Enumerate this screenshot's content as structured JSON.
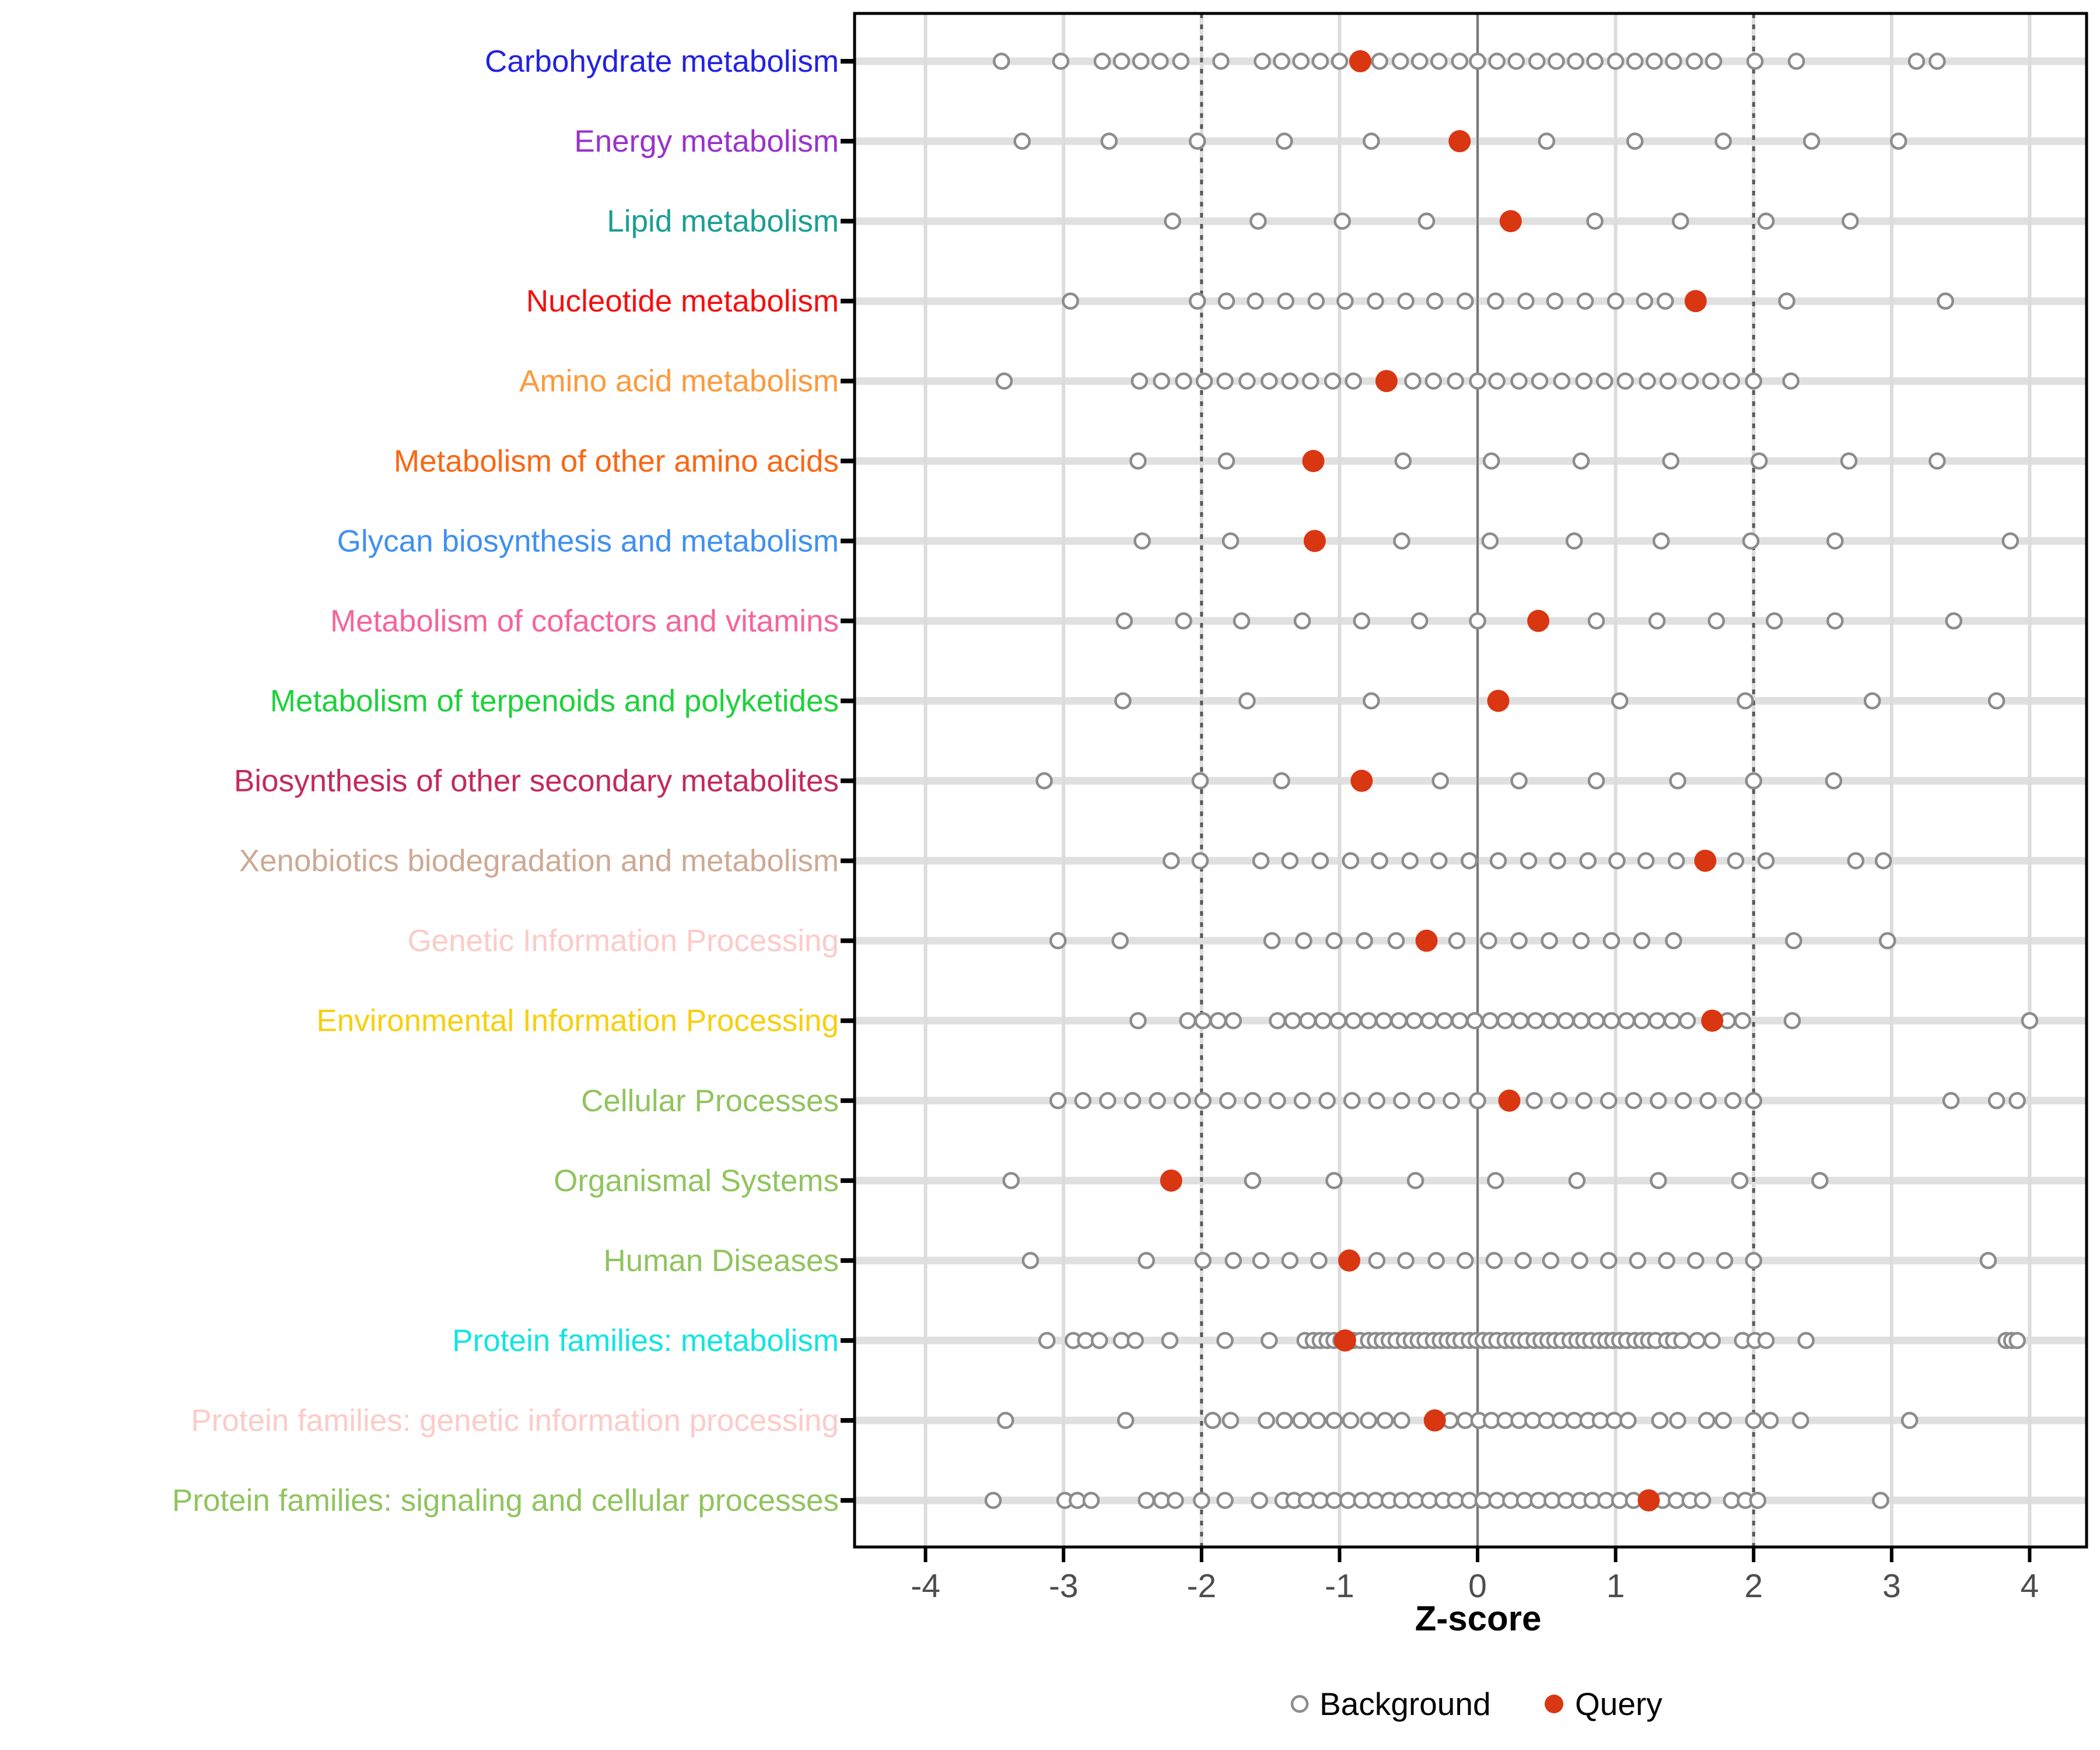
{
  "chart_data": {
    "type": "scatter",
    "title": "",
    "xlabel": "Z-score",
    "ylabel": "",
    "xlim": [
      -4.5,
      4.4
    ],
    "x_ticks": [
      -4,
      -3,
      -2,
      -1,
      0,
      1,
      2,
      3,
      4
    ],
    "x_tick_labels": [
      "-4",
      "-3",
      "-2",
      "-1",
      "0",
      "1",
      "2",
      "3",
      "4"
    ],
    "grid": true,
    "legend_position": "bottom",
    "reference_lines": {
      "solid_at": 0,
      "dotted_at": [
        -2,
        2
      ]
    },
    "legend": [
      {
        "label": "Background",
        "marker": "open-gray-circle"
      },
      {
        "label": "Query",
        "marker": "filled-red-circle"
      }
    ],
    "colors": {
      "query_dot": "#D93612",
      "background_stroke": "#8C8C8C",
      "background_fill": "#FFFFFF",
      "row_strip": "#E0E0E0",
      "gridline": "#DCDCDC",
      "zero_line": "#707070",
      "dotted_line": "#5A5A5A",
      "panel_border": "#000000",
      "axis_text": "#4D4D4D"
    },
    "categories": [
      {
        "label": "Carbohydrate metabolism",
        "color": "#2222E2",
        "query": -0.85,
        "background": [
          -3.45,
          -3.02,
          -2.72,
          -2.58,
          -2.44,
          -2.3,
          -2.15,
          -1.86,
          -1.56,
          -1.42,
          -1.28,
          -1.14,
          -1.0,
          -0.71,
          -0.56,
          -0.42,
          -0.28,
          -0.13,
          0.0,
          0.14,
          0.28,
          0.43,
          0.57,
          0.71,
          0.85,
          1.0,
          1.14,
          1.28,
          1.42,
          1.57,
          1.71,
          2.01,
          2.31,
          3.18,
          3.33
        ]
      },
      {
        "label": "Energy metabolism",
        "color": "#9933CC",
        "query": -0.13,
        "background": [
          -3.3,
          -2.67,
          -2.03,
          -1.4,
          -0.77,
          0.5,
          1.14,
          1.78,
          2.42,
          3.05
        ]
      },
      {
        "label": "Lipid metabolism",
        "color": "#1B9E93",
        "query": 0.24,
        "background": [
          -2.21,
          -1.59,
          -0.98,
          -0.37,
          0.85,
          1.47,
          2.09,
          2.7
        ]
      },
      {
        "label": "Nucleotide metabolism",
        "color": "#F50F0F",
        "query": 1.58,
        "background": [
          -2.95,
          -2.03,
          -1.82,
          -1.61,
          -1.39,
          -1.17,
          -0.96,
          -0.74,
          -0.52,
          -0.31,
          -0.09,
          0.13,
          0.35,
          0.56,
          0.78,
          1.0,
          1.21,
          1.36,
          2.24,
          3.39
        ]
      },
      {
        "label": "Amino acid metabolism",
        "color": "#FC9A3C",
        "query": -0.66,
        "background": [
          -3.43,
          -2.45,
          -2.29,
          -2.13,
          -1.98,
          -1.83,
          -1.67,
          -1.51,
          -1.36,
          -1.21,
          -1.05,
          -0.9,
          -0.47,
          -0.32,
          -0.16,
          0.0,
          0.14,
          0.3,
          0.45,
          0.61,
          0.77,
          0.92,
          1.07,
          1.23,
          1.38,
          1.54,
          1.69,
          1.84,
          2.0,
          2.27
        ]
      },
      {
        "label": "Metabolism of other amino acids",
        "color": "#F96714",
        "query": -1.19,
        "background": [
          -2.46,
          -1.82,
          -0.54,
          0.1,
          0.75,
          1.4,
          2.04,
          2.69,
          3.33
        ]
      },
      {
        "label": "Glycan biosynthesis and metabolism",
        "color": "#4090F0",
        "query": -1.18,
        "background": [
          -2.43,
          -1.79,
          -0.55,
          0.09,
          0.7,
          1.33,
          1.98,
          2.59,
          3.86
        ]
      },
      {
        "label": "Metabolism of cofactors and vitamins",
        "color": "#F5649B",
        "query": 0.44,
        "background": [
          -2.56,
          -2.13,
          -1.71,
          -1.27,
          -0.84,
          -0.42,
          0.0,
          0.86,
          1.3,
          1.73,
          2.15,
          2.59,
          3.45
        ]
      },
      {
        "label": "Metabolism of terpenoids and polyketides",
        "color": "#1ED13C",
        "query": 0.15,
        "background": [
          -2.57,
          -1.67,
          -0.77,
          1.03,
          1.94,
          2.86,
          3.76
        ]
      },
      {
        "label": "Biosynthesis of other secondary metabolites",
        "color": "#C22A5E",
        "query": -0.84,
        "background": [
          -3.14,
          -2.01,
          -1.42,
          -0.27,
          0.3,
          0.86,
          1.45,
          2.0,
          2.58
        ]
      },
      {
        "label": "Xenobiotics biodegradation and metabolism",
        "color": "#CDAA94",
        "query": 1.65,
        "background": [
          -2.22,
          -2.01,
          -1.57,
          -1.36,
          -1.14,
          -0.92,
          -0.71,
          -0.49,
          -0.28,
          -0.06,
          0.15,
          0.37,
          0.58,
          0.8,
          1.01,
          1.22,
          1.44,
          1.87,
          2.09,
          2.74,
          2.94
        ]
      },
      {
        "label": "Genetic Information Processing",
        "color": "#FBCBC8",
        "query": -0.37,
        "background": [
          -3.04,
          -2.59,
          -1.49,
          -1.26,
          -1.04,
          -0.82,
          -0.59,
          -0.15,
          0.08,
          0.3,
          0.52,
          0.75,
          0.97,
          1.19,
          1.42,
          2.29,
          2.97
        ]
      },
      {
        "label": "Environmental Information Processing",
        "color": "#F7CF0D",
        "query": 1.7,
        "background": [
          -2.46,
          -2.1,
          -1.99,
          -1.88,
          -1.77,
          -1.45,
          -1.34,
          -1.23,
          -1.12,
          -1.01,
          -0.9,
          -0.79,
          -0.68,
          -0.57,
          -0.46,
          -0.35,
          -0.24,
          -0.13,
          -0.02,
          0.09,
          0.2,
          0.31,
          0.42,
          0.53,
          0.64,
          0.75,
          0.86,
          0.97,
          1.08,
          1.19,
          1.3,
          1.41,
          1.52,
          1.81,
          1.92,
          2.28,
          4.0
        ]
      },
      {
        "label": "Cellular Processes",
        "color": "#90C45E",
        "query": 0.23,
        "background": [
          -3.04,
          -2.86,
          -2.68,
          -2.5,
          -2.32,
          -2.14,
          -1.99,
          -1.81,
          -1.63,
          -1.45,
          -1.27,
          -1.09,
          -0.91,
          -0.73,
          -0.55,
          -0.37,
          -0.19,
          0.0,
          0.41,
          0.59,
          0.77,
          0.95,
          1.13,
          1.31,
          1.49,
          1.67,
          1.85,
          2.0,
          3.43,
          3.76,
          3.91
        ]
      },
      {
        "label": "Organismal Systems",
        "color": "#90C45E",
        "query": -2.22,
        "background": [
          -3.38,
          -1.63,
          -1.04,
          -0.45,
          0.13,
          0.72,
          1.31,
          1.9,
          2.48
        ]
      },
      {
        "label": "Human Diseases",
        "color": "#90C45E",
        "query": -0.93,
        "background": [
          -3.24,
          -2.4,
          -1.99,
          -1.77,
          -1.57,
          -1.36,
          -1.15,
          -0.73,
          -0.52,
          -0.3,
          -0.09,
          0.12,
          0.33,
          0.53,
          0.74,
          0.95,
          1.16,
          1.37,
          1.58,
          1.79,
          2.0,
          3.7
        ]
      },
      {
        "label": "Protein families: metabolism",
        "color": "#10E5E0",
        "query": -0.96,
        "background": [
          -3.12,
          -2.93,
          -2.84,
          -2.74,
          -2.58,
          -2.48,
          -2.23,
          -1.83,
          -1.51,
          -1.25,
          -1.19,
          -1.14,
          -1.09,
          -1.04,
          -0.99,
          -0.9,
          -0.85,
          -0.79,
          -0.74,
          -0.69,
          -0.64,
          -0.59,
          -0.53,
          -0.48,
          -0.43,
          -0.38,
          -0.32,
          -0.27,
          -0.22,
          -0.17,
          -0.12,
          -0.06,
          -0.01,
          0.04,
          0.09,
          0.14,
          0.2,
          0.25,
          0.3,
          0.35,
          0.41,
          0.46,
          0.51,
          0.56,
          0.61,
          0.67,
          0.72,
          0.77,
          0.82,
          0.88,
          0.93,
          0.98,
          1.03,
          1.08,
          1.14,
          1.19,
          1.24,
          1.29,
          1.37,
          1.42,
          1.48,
          1.59,
          1.7,
          1.92,
          2.01,
          2.09,
          2.38,
          3.83,
          3.87,
          3.91
        ]
      },
      {
        "label": "Protein families: genetic information processing",
        "color": "#FBCBC8",
        "query": -0.31,
        "background": [
          -3.42,
          -2.55,
          -1.92,
          -1.79,
          -1.53,
          -1.4,
          -1.28,
          -1.16,
          -1.04,
          -0.92,
          -0.79,
          -0.67,
          -0.55,
          -0.2,
          -0.09,
          0.01,
          0.1,
          0.2,
          0.3,
          0.4,
          0.5,
          0.6,
          0.7,
          0.8,
          0.89,
          0.99,
          1.09,
          1.32,
          1.45,
          1.66,
          1.78,
          2.0,
          2.12,
          2.34,
          3.13
        ]
      },
      {
        "label": "Protein families: signaling and cellular processes",
        "color": "#90C45E",
        "query": 1.24,
        "background": [
          -3.51,
          -2.99,
          -2.9,
          -2.8,
          -2.4,
          -2.29,
          -2.19,
          -2.0,
          -1.83,
          -1.58,
          -1.41,
          -1.33,
          -1.24,
          -1.14,
          -1.04,
          -0.94,
          -0.84,
          -0.74,
          -0.64,
          -0.55,
          -0.45,
          -0.35,
          -0.25,
          -0.16,
          -0.06,
          0.04,
          0.14,
          0.24,
          0.34,
          0.44,
          0.54,
          0.64,
          0.74,
          0.83,
          0.93,
          1.03,
          1.13,
          1.34,
          1.44,
          1.54,
          1.63,
          1.84,
          1.94,
          2.03,
          2.92
        ]
      }
    ]
  }
}
